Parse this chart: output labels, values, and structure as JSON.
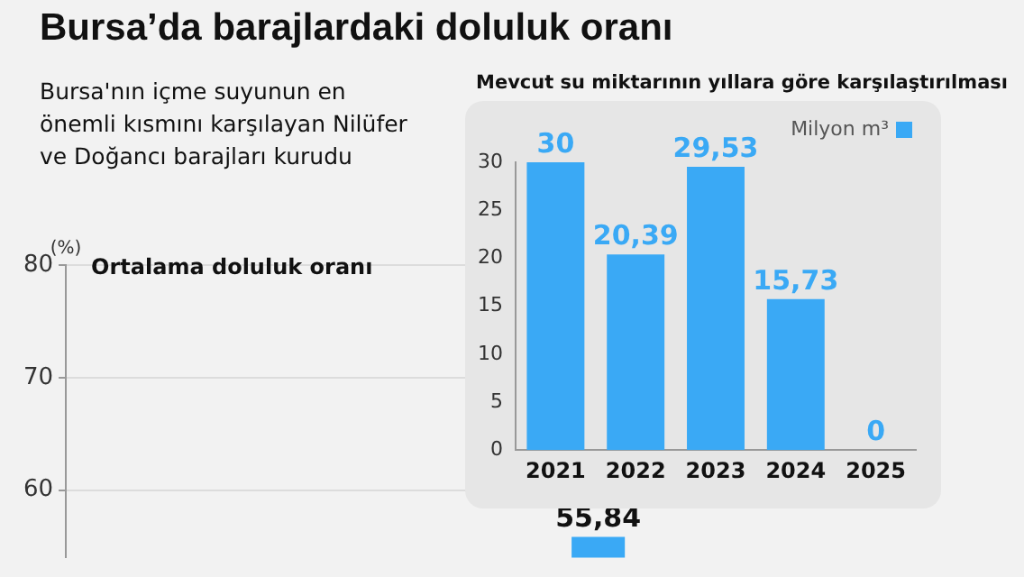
{
  "chart_data": [
    {
      "type": "bar",
      "title": "Bursa’da barajlardaki doluluk oranı",
      "subtitle": "Bursa'nın içme suyunun en önemli kısmını karşılayan Nilüfer ve Doğancı barajları kurudu",
      "annotations": [
        "Ortalama doluluk oranı"
      ],
      "ylabel": "(%)",
      "categories": [
        null,
        null,
        null,
        null
      ],
      "series": [
        {
          "color": "#3aa9f5",
          "values": [
            null,
            null,
            55.84,
            null
          ],
          "value_labels": [
            null,
            null,
            "55,84",
            null
          ]
        }
      ],
      "ylim": [
        54,
        80
      ],
      "yticks": [
        60,
        70,
        80
      ],
      "grid": "y",
      "tick_labels": "y",
      "legend": false
    },
    {
      "type": "bar",
      "title": "Mevcut su miktarının yıllara göre karşılaştırılması",
      "categories": [
        "2021",
        "2022",
        "2023",
        "2024",
        "2025"
      ],
      "series": [
        {
          "name": "Milyon m³",
          "color": "#3aa9f5",
          "values": [
            30,
            20.39,
            29.53,
            15.73,
            0
          ],
          "value_labels": [
            "30",
            "20,39",
            "29,53",
            "15,73",
            "0"
          ]
        }
      ],
      "ylim": [
        0,
        30
      ],
      "yticks": [
        0,
        5,
        10,
        15,
        20,
        25,
        30
      ],
      "grid": false,
      "legend": "top right"
    }
  ]
}
